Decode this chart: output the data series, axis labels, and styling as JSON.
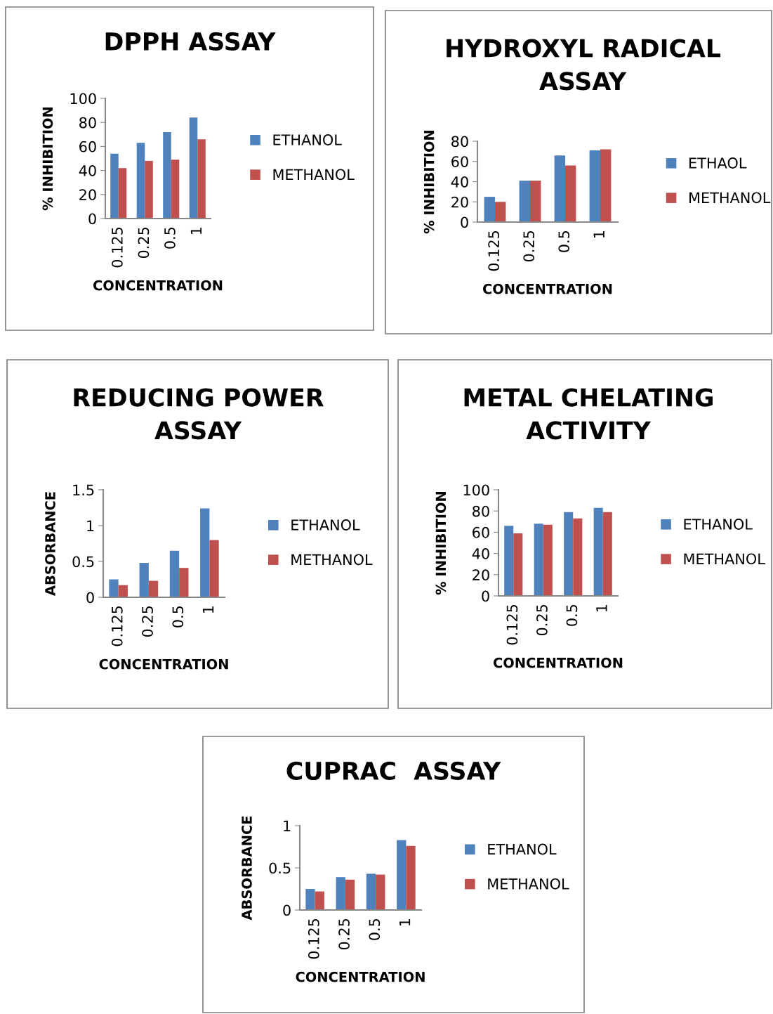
{
  "chart_data": [
    {
      "type": "bar",
      "title": "DPPH ASSAY",
      "xlabel": "CONCENTRATION",
      "ylabel": "% INHIBITION",
      "categories": [
        "0.125",
        "0.25",
        "0.5",
        "1"
      ],
      "ylim": [
        0,
        100
      ],
      "yticks": [
        0,
        20,
        40,
        60,
        80,
        100
      ],
      "grid": false,
      "legend": "right",
      "series": [
        {
          "name": "ETHANOL",
          "color": "#4f81bd",
          "values": [
            54,
            63,
            72,
            84
          ]
        },
        {
          "name": "METHANOL",
          "color": "#c0504d",
          "values": [
            42,
            48,
            49,
            66
          ]
        }
      ]
    },
    {
      "type": "bar",
      "title": "HYDROXYL RADICAL\nASSAY",
      "xlabel": "CONCENTRATION",
      "ylabel": "% INHIBITION",
      "categories": [
        "0.125",
        "0.25",
        "0.5",
        "1"
      ],
      "ylim": [
        0,
        80
      ],
      "yticks": [
        0,
        20,
        40,
        60,
        80
      ],
      "grid": false,
      "legend": "right",
      "series": [
        {
          "name": "ETHAOL",
          "color": "#4f81bd",
          "values": [
            25,
            41,
            66,
            71
          ]
        },
        {
          "name": "METHANOL",
          "color": "#c0504d",
          "values": [
            20,
            41,
            56,
            72
          ]
        }
      ]
    },
    {
      "type": "bar",
      "title": "REDUCING POWER\nASSAY",
      "xlabel": "CONCENTRATION",
      "ylabel": "ABSORBANCE",
      "categories": [
        "0.125",
        "0.25",
        "0.5",
        "1"
      ],
      "ylim": [
        0,
        1.5
      ],
      "yticks": [
        0,
        0.5,
        1,
        1.5
      ],
      "grid": false,
      "legend": "right",
      "series": [
        {
          "name": "ETHANOL",
          "color": "#4f81bd",
          "values": [
            0.25,
            0.48,
            0.65,
            1.24
          ]
        },
        {
          "name": "METHANOL",
          "color": "#c0504d",
          "values": [
            0.17,
            0.23,
            0.41,
            0.8
          ]
        }
      ]
    },
    {
      "type": "bar",
      "title": "METAL CHELATING\nACTIVITY",
      "xlabel": "CONCENTRATION",
      "ylabel": "% INHIBITION",
      "categories": [
        "0.125",
        "0.25",
        "0.5",
        "1"
      ],
      "ylim": [
        0,
        100
      ],
      "yticks": [
        0,
        20,
        40,
        60,
        80,
        100
      ],
      "grid": false,
      "legend": "right",
      "series": [
        {
          "name": "ETHANOL",
          "color": "#4f81bd",
          "values": [
            66,
            68,
            79,
            83
          ]
        },
        {
          "name": "METHANOL",
          "color": "#c0504d",
          "values": [
            59,
            67,
            73,
            79
          ]
        }
      ]
    },
    {
      "type": "bar",
      "title": "CUPRAC  ASSAY",
      "xlabel": "CONCENTRATION",
      "ylabel": "ABSORBANCE",
      "categories": [
        "0.125",
        "0.25",
        "0.5",
        "1"
      ],
      "ylim": [
        0,
        1
      ],
      "yticks": [
        0,
        0.5,
        1
      ],
      "grid": false,
      "legend": "right",
      "series": [
        {
          "name": "ETHANOL",
          "color": "#4f81bd",
          "values": [
            0.25,
            0.39,
            0.43,
            0.83
          ]
        },
        {
          "name": "METHANOL",
          "color": "#c0504d",
          "values": [
            0.22,
            0.36,
            0.42,
            0.76
          ]
        }
      ]
    }
  ]
}
